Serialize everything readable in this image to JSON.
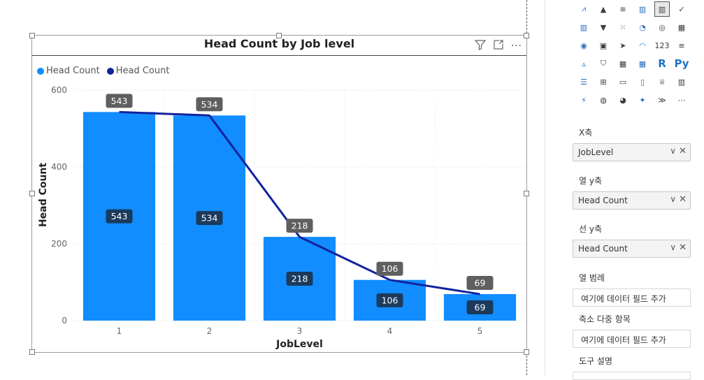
{
  "visual": {
    "title": "Head Count by Job level",
    "filter_icon": "filter-icon",
    "focus_icon": "focus-mode-icon",
    "more_icon": "more-options-icon"
  },
  "chart_data": {
    "type": "bar",
    "title": "Head Count by Job level",
    "xlabel": "JobLevel",
    "ylabel": "Head Count",
    "categories": [
      "1",
      "2",
      "3",
      "4",
      "5"
    ],
    "series": [
      {
        "name": "Head Count",
        "kind": "column",
        "color": "#118DFF",
        "values": [
          543,
          534,
          218,
          106,
          69
        ]
      },
      {
        "name": "Head Count",
        "kind": "line",
        "color": "#12239E",
        "values": [
          543,
          534,
          218,
          106,
          69
        ]
      }
    ],
    "ylim": [
      0,
      600
    ],
    "yticks": [
      "0",
      "200",
      "400",
      "600"
    ],
    "grid": true,
    "legend": "top-left"
  },
  "pane": {
    "wells": [
      {
        "label": "X축",
        "value": "JobLevel",
        "filled": true
      },
      {
        "label": "열 y축",
        "value": "Head Count",
        "filled": true
      },
      {
        "label": "선 y축",
        "value": "Head Count",
        "filled": true
      },
      {
        "label": "열 범례",
        "value": "여기에 데이터 필드 추가",
        "filled": false
      },
      {
        "label": "축소 다중 항목",
        "value": "여기에 데이터 필드 추가",
        "filled": false
      },
      {
        "label": "도구 설명",
        "value": "",
        "filled": false
      }
    ],
    "viz_icons": [
      "line-chart-icon",
      "area-chart-icon",
      "stacked-area-icon",
      "line-clustered-column-icon",
      "line-stacked-column-icon",
      "ribbon-chart-icon",
      "waterfall-chart-icon",
      "funnel-chart-icon",
      "scatter-chart-icon",
      "pie-chart-icon",
      "donut-chart-icon",
      "treemap-icon",
      "map-icon",
      "filled-map-icon",
      "azure-map-icon",
      "gauge-icon",
      "card-icon",
      "multi-row-card-icon",
      "kpi-icon",
      "slicer-icon",
      "table-icon",
      "matrix-icon",
      "r-visual-icon",
      "python-visual-icon",
      "key-influencers-icon",
      "decomposition-tree-icon",
      "qa-icon",
      "smart-narrative-icon",
      "metrics-icon",
      "paginated-report-icon",
      "power-apps-icon",
      "arcgis-icon",
      "globe-icon",
      "power-automate-icon",
      "chevrons-icon",
      "more-visuals-icon"
    ],
    "viz_glyphs": [
      "⩘",
      "▲",
      "≋",
      "▥",
      "▥",
      "✓",
      "▥",
      "▼",
      "⁙",
      "◔",
      "◎",
      "▦",
      "◉",
      "▣",
      "➤",
      "◠",
      "123",
      "≡",
      "▵",
      "⛉",
      "▦",
      "▦",
      "R",
      "Py",
      "☰",
      "⊞",
      "▭",
      "▯",
      "♕",
      "▥",
      "⚡",
      "◍",
      "◕",
      "✦",
      "≫",
      "⋯"
    ]
  }
}
